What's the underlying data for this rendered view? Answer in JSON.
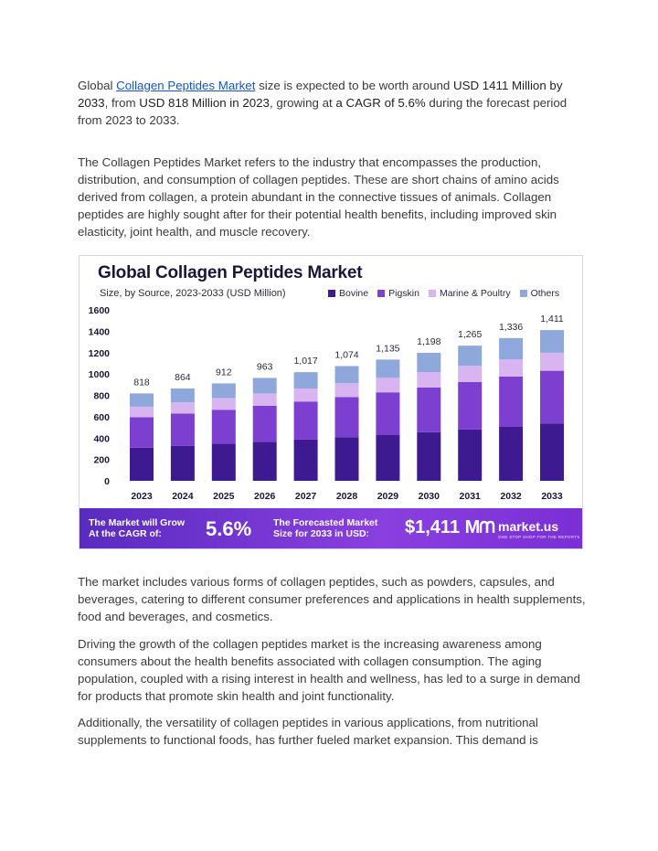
{
  "intro": {
    "prefix": "Global ",
    "link_text": "Collagen Peptides Market",
    "text_a": " size is expected to be worth around ",
    "highlight_a": "USD 1411 Million by 2033",
    "text_b": ", from ",
    "highlight_b": "USD 818 Million in 2023",
    "text_c": ", growing at ",
    "highlight_c": "a CAGR of 5.6%",
    "text_d": " during the forecast period from 2023 to 2033."
  },
  "definition": "The Collagen Peptides Market refers to the industry that encompasses the production, distribution, and consumption of collagen peptides. These are short chains of amino acids derived from collagen, a protein abundant in the connective tissues of animals. Collagen peptides are highly sought after for their potential health benefits, including improved skin elasticity, joint health, and muscle recovery.",
  "infographic": {
    "title": "Global Collagen Peptides Market",
    "subtitle": "Size, by Source, 2023-2033 (USD Million)",
    "banner": {
      "cagr_label_1": "The Market will Grow",
      "cagr_label_2": "At the CAGR of:",
      "cagr_value": "5.6%",
      "forecast_label_1": "The Forecasted Market",
      "forecast_label_2": "Size for 2033 in USD:",
      "forecast_value": "$1,411 M",
      "brand": "market.us",
      "brand_tagline": "ONE STOP SHOP FOR THE REPORTS"
    }
  },
  "chart_data": {
    "type": "bar",
    "stacked": true,
    "categories": [
      "2023",
      "2024",
      "2025",
      "2026",
      "2027",
      "2028",
      "2029",
      "2030",
      "2031",
      "2032",
      "2033"
    ],
    "totals": [
      818,
      864,
      912,
      963,
      1017,
      1074,
      1135,
      1198,
      1265,
      1336,
      1411
    ],
    "total_labels": [
      "818",
      "864",
      "912",
      "963",
      "1,017",
      "1,074",
      "1,135",
      "1,198",
      "1,265",
      "1,336",
      "1,411"
    ],
    "series": [
      {
        "name": "Bovine",
        "color": "#3d1a8f",
        "values": [
          310,
          328,
          346,
          365,
          386,
          408,
          431,
          455,
          481,
          508,
          536
        ]
      },
      {
        "name": "Pigskin",
        "color": "#7c3fd0",
        "values": [
          286,
          302,
          319,
          337,
          356,
          376,
          397,
          419,
          443,
          468,
          494
        ]
      },
      {
        "name": "Marine & Poultry",
        "color": "#d8b4f0",
        "values": [
          98,
          104,
          110,
          116,
          122,
          129,
          136,
          144,
          152,
          160,
          169
        ]
      },
      {
        "name": "Others",
        "color": "#8fa8dc",
        "values": [
          124,
          130,
          137,
          145,
          153,
          161,
          171,
          180,
          189,
          200,
          212
        ]
      }
    ],
    "yticks": [
      "0",
      "200",
      "400",
      "600",
      "800",
      "1000",
      "1200",
      "1400",
      "1600"
    ],
    "ylim": [
      0,
      1600
    ],
    "xlabel": "",
    "ylabel": ""
  },
  "p3": "The market includes various forms of collagen peptides, such as powders, capsules, and beverages, catering to different consumer preferences and applications in health supplements, food and beverages, and cosmetics.",
  "p4": "Driving the growth of the collagen peptides market is the increasing awareness among consumers about the health benefits associated with collagen consumption. The aging population, coupled with a rising interest in health and wellness, has led to a surge in demand for products that promote skin health and joint functionality.",
  "p5": "Additionally, the versatility of collagen peptides in various applications, from nutritional supplements to functional foods, has further fueled market expansion. This demand is"
}
